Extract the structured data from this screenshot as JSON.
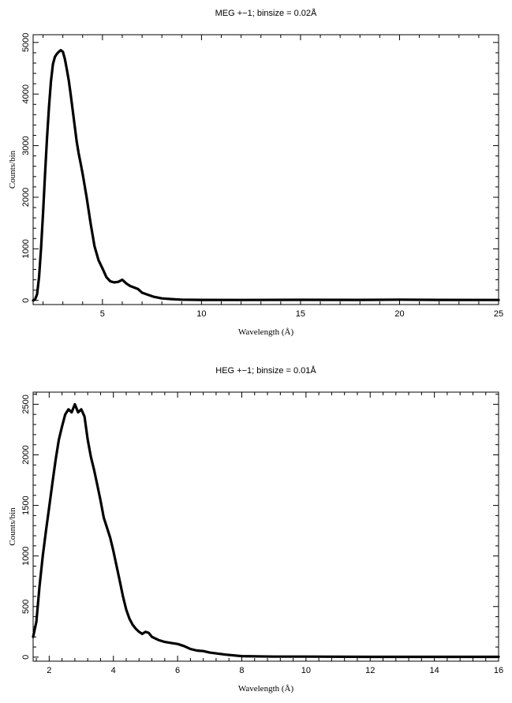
{
  "chart_data": [
    {
      "type": "line",
      "title": "MEG +−1; binsize = 0.02Å",
      "xlabel": "Wavelength (Å)",
      "ylabel": "Counts/bin",
      "xlim": [
        1.5,
        25
      ],
      "ylim": [
        -80,
        5150
      ],
      "xticks": [
        5,
        10,
        15,
        20,
        25
      ],
      "yticks": [
        0,
        1000,
        2000,
        3000,
        4000,
        5000
      ],
      "xtick_labels": [
        "5",
        "10",
        "15",
        "20",
        "25"
      ],
      "ytick_labels": [
        "0",
        "1000",
        "2000",
        "3000",
        "4000",
        "5000"
      ],
      "grid": false,
      "series": [
        {
          "color": "#000000",
          "x": [
            1.5,
            1.6,
            1.7,
            1.8,
            1.9,
            2.0,
            2.1,
            2.2,
            2.3,
            2.4,
            2.5,
            2.6,
            2.7,
            2.8,
            2.9,
            3.0,
            3.1,
            3.2,
            3.3,
            3.4,
            3.5,
            3.6,
            3.7,
            3.8,
            3.9,
            4.0,
            4.2,
            4.4,
            4.6,
            4.8,
            5.0,
            5.2,
            5.4,
            5.6,
            5.8,
            6.0,
            6.2,
            6.4,
            6.6,
            6.8,
            7.0,
            7.3,
            7.6,
            8.0,
            8.5,
            9.0,
            10.0,
            12.0,
            15.0,
            18.0,
            20.0,
            22.0,
            25.0
          ],
          "y": [
            0,
            20,
            120,
            450,
            1000,
            1700,
            2450,
            3150,
            3750,
            4250,
            4580,
            4720,
            4780,
            4820,
            4850,
            4820,
            4680,
            4480,
            4260,
            3980,
            3680,
            3380,
            3080,
            2850,
            2650,
            2450,
            2000,
            1500,
            1050,
            780,
            620,
            450,
            370,
            350,
            360,
            400,
            330,
            280,
            250,
            220,
            150,
            110,
            70,
            40,
            25,
            15,
            10,
            8,
            12,
            10,
            15,
            10,
            8
          ]
        }
      ]
    },
    {
      "type": "line",
      "title": "HEG +−1; binsize = 0.01Å",
      "xlabel": "Wavelength (Å)",
      "ylabel": "Counts/bin",
      "xlim": [
        1.5,
        16
      ],
      "ylim": [
        -40,
        2620
      ],
      "xticks": [
        2,
        4,
        6,
        8,
        10,
        12,
        14,
        16
      ],
      "yticks": [
        0,
        500,
        1000,
        1500,
        2000,
        2500
      ],
      "xtick_labels": [
        "2",
        "4",
        "6",
        "8",
        "10",
        "12",
        "14",
        "16"
      ],
      "ytick_labels": [
        "0",
        "500",
        "1000",
        "1500",
        "2000",
        "2500"
      ],
      "grid": false,
      "series": [
        {
          "color": "#000000",
          "x": [
            1.5,
            1.6,
            1.7,
            1.8,
            1.9,
            2.0,
            2.1,
            2.2,
            2.3,
            2.4,
            2.5,
            2.6,
            2.7,
            2.8,
            2.9,
            3.0,
            3.1,
            3.2,
            3.3,
            3.4,
            3.5,
            3.6,
            3.7,
            3.8,
            3.9,
            4.0,
            4.1,
            4.2,
            4.3,
            4.4,
            4.5,
            4.6,
            4.7,
            4.8,
            4.9,
            5.0,
            5.1,
            5.2,
            5.4,
            5.6,
            5.8,
            6.0,
            6.2,
            6.4,
            6.6,
            6.8,
            7.0,
            7.5,
            8.0,
            9.0,
            10.0,
            12.0,
            14.0,
            16.0
          ],
          "y": [
            200,
            350,
            700,
            1000,
            1250,
            1480,
            1720,
            1950,
            2150,
            2280,
            2400,
            2450,
            2420,
            2500,
            2420,
            2450,
            2380,
            2150,
            1980,
            1850,
            1700,
            1550,
            1380,
            1280,
            1180,
            1050,
            900,
            750,
            600,
            470,
            380,
            320,
            280,
            250,
            230,
            250,
            240,
            200,
            170,
            150,
            140,
            130,
            110,
            80,
            65,
            60,
            45,
            25,
            10,
            5,
            5,
            3,
            3,
            3
          ]
        }
      ]
    }
  ]
}
